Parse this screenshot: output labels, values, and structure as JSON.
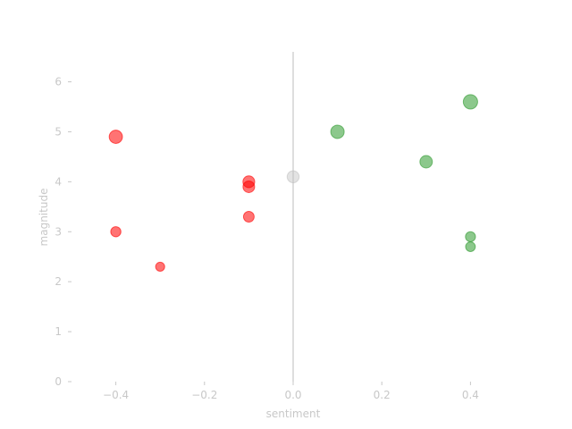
{
  "chart_data": {
    "type": "scatter",
    "title": "",
    "xlabel": "sentiment",
    "ylabel": "magnitude",
    "xlim": [
      -0.5,
      0.5
    ],
    "ylim": [
      0,
      6.6
    ],
    "x_ticks": [
      -0.4,
      -0.2,
      0.0,
      0.2,
      0.4
    ],
    "x_tick_labels": [
      "−0.4",
      "−0.2",
      "0.0",
      "0.2",
      "0.4"
    ],
    "y_ticks": [
      0,
      1,
      2,
      3,
      4,
      5,
      6
    ],
    "y_tick_labels": [
      "0",
      "1",
      "2",
      "3",
      "4",
      "5",
      "6"
    ],
    "grid": false,
    "reference_line_x": 0.0,
    "colors": {
      "negative": "#ff0000",
      "neutral": "#c0c0c0",
      "positive": "#2e9a2e",
      "axis": "#c8c8c8"
    },
    "points": [
      {
        "x": -0.4,
        "y": 4.9,
        "color": "negative"
      },
      {
        "x": -0.4,
        "y": 3.0,
        "color": "negative"
      },
      {
        "x": -0.3,
        "y": 2.3,
        "color": "negative"
      },
      {
        "x": -0.1,
        "y": 4.0,
        "color": "negative"
      },
      {
        "x": -0.1,
        "y": 3.9,
        "color": "negative"
      },
      {
        "x": -0.1,
        "y": 3.3,
        "color": "negative"
      },
      {
        "x": 0.0,
        "y": 4.1,
        "color": "neutral"
      },
      {
        "x": 0.1,
        "y": 5.0,
        "color": "positive"
      },
      {
        "x": 0.3,
        "y": 4.4,
        "color": "positive"
      },
      {
        "x": 0.4,
        "y": 5.6,
        "color": "positive"
      },
      {
        "x": 0.4,
        "y": 2.9,
        "color": "positive"
      },
      {
        "x": 0.4,
        "y": 2.7,
        "color": "positive"
      }
    ]
  }
}
